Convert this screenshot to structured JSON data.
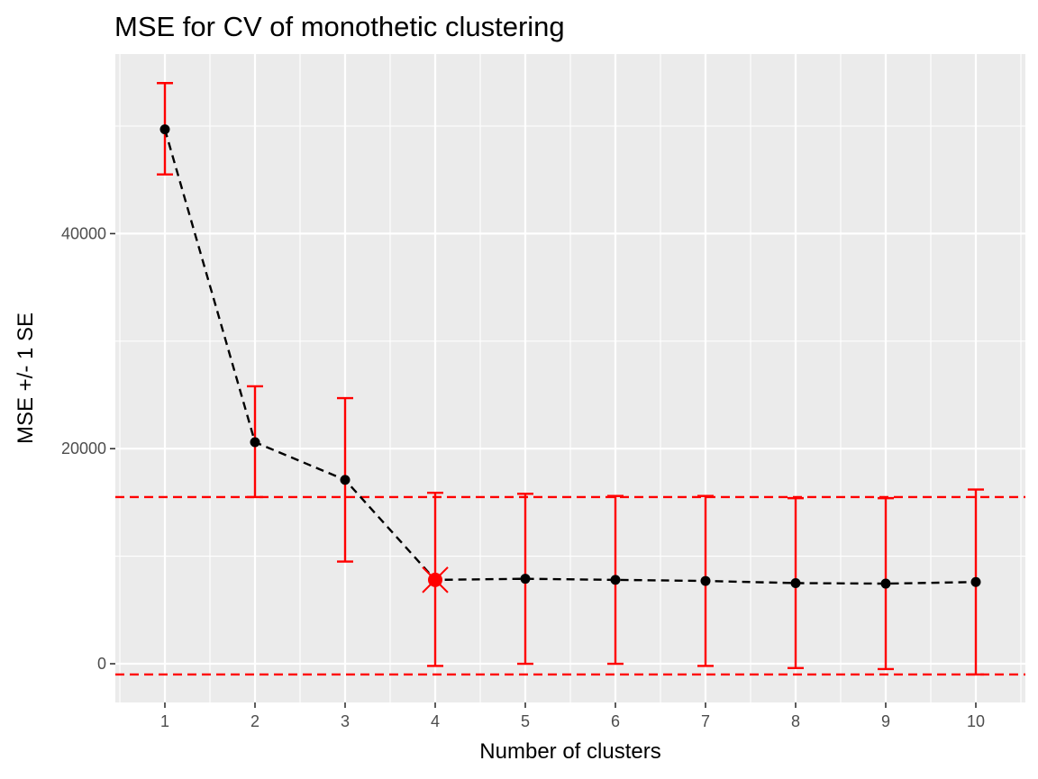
{
  "chart_data": {
    "type": "line",
    "title": "MSE for CV of monothetic clustering",
    "xlabel": "Number of clusters",
    "ylabel": "MSE +/- 1 SE",
    "x": [
      1,
      2,
      3,
      4,
      5,
      6,
      7,
      8,
      9,
      10
    ],
    "y": [
      49700,
      20600,
      17100,
      7800,
      7900,
      7800,
      7700,
      7500,
      7450,
      7600
    ],
    "error_upper": [
      54000,
      25800,
      24700,
      15900,
      15800,
      15600,
      15600,
      15400,
      15400,
      16200
    ],
    "error_lower": [
      45500,
      15500,
      9500,
      -200,
      0,
      0,
      -200,
      -400,
      -500,
      -1000
    ],
    "reference_lines": [
      15500,
      -1000
    ],
    "selected_x": 4,
    "xlim": [
      0.45,
      10.55
    ],
    "ylim": [
      -3600,
      56700
    ],
    "xticks": [
      1,
      2,
      3,
      4,
      5,
      6,
      7,
      8,
      9,
      10
    ],
    "yticks": [
      0,
      20000,
      40000
    ],
    "grid": true,
    "colors": {
      "panel": "#ebebeb",
      "grid": "#ffffff",
      "line": "#000000",
      "points": "#000000",
      "error_bars": "#ff0000",
      "reference_lines": "#ff0000",
      "selected_point": "#ff0000"
    }
  }
}
